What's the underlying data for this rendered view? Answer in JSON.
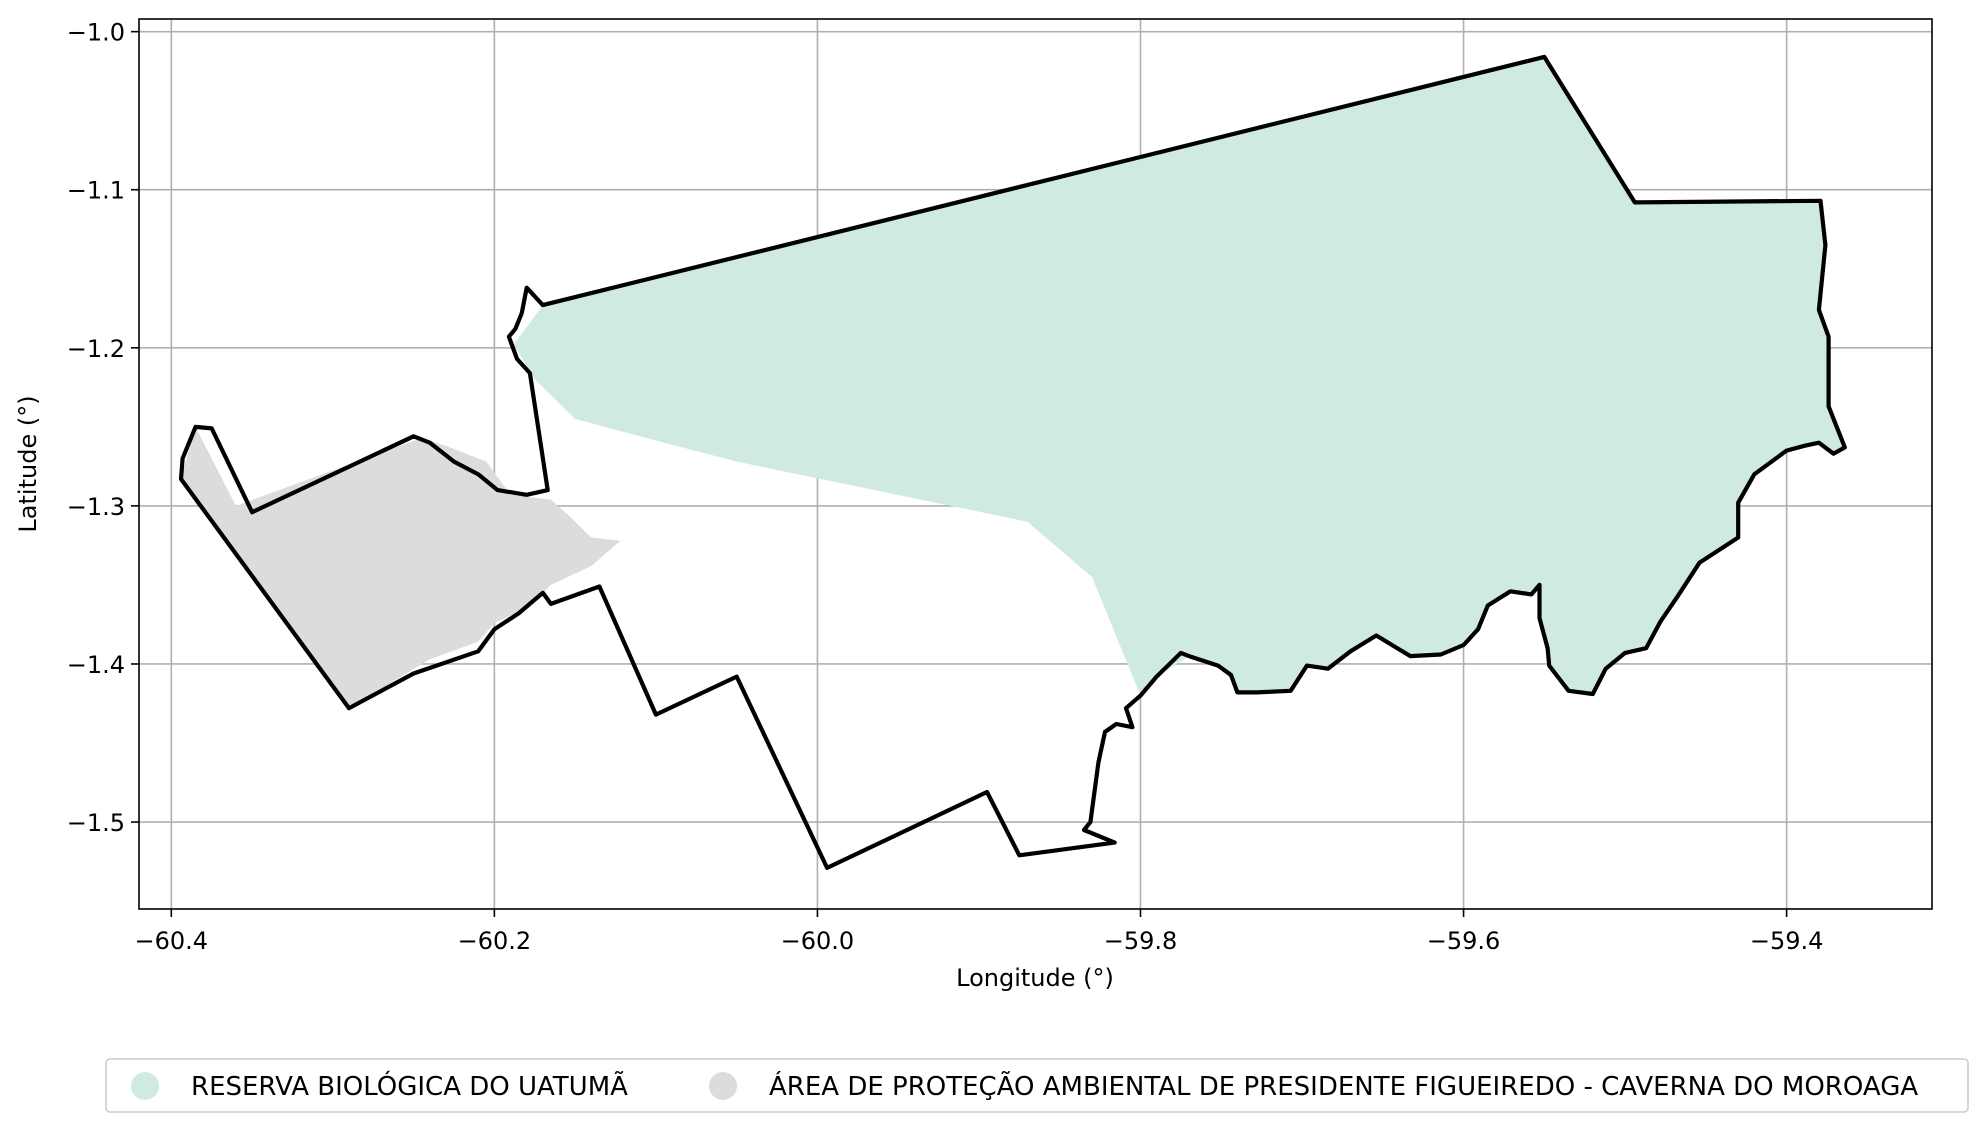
{
  "chart_data": {
    "type": "map",
    "xlabel": "Longitude (°)",
    "ylabel": "Latitude (°)",
    "xlim": [
      -60.42,
      -59.31
    ],
    "ylim": [
      -1.555,
      -0.992
    ],
    "xticks": [
      -60.4,
      -60.2,
      -60.0,
      -59.8,
      -59.6,
      -59.4
    ],
    "yticks": [
      -1.0,
      -1.1,
      -1.2,
      -1.3,
      -1.4,
      -1.5
    ],
    "xtick_labels": [
      "−60.4",
      "−60.2",
      "−60.0",
      "−59.8",
      "−59.6",
      "−59.4"
    ],
    "ytick_labels": [
      "−1.0",
      "−1.1",
      "−1.2",
      "−1.3",
      "−1.4",
      "−1.5"
    ],
    "grid": true,
    "legend_position": "bottom",
    "colors": {
      "reserve_fill": "#cfeade",
      "apa_fill": "#dcdcdc",
      "outline": "#000000",
      "grid": "#b0b0b0"
    },
    "areas": [
      {
        "name": "RESERVA BIOLÓGICA DO UATUMÃ",
        "color": "#cfeade",
        "polygon": [
          [
            -60.17,
            -1.173
          ],
          [
            -59.55,
            -1.016
          ],
          [
            -59.494,
            -1.108
          ],
          [
            -59.379,
            -1.107
          ],
          [
            -59.376,
            -1.135
          ],
          [
            -59.38,
            -1.176
          ],
          [
            -59.374,
            -1.193
          ],
          [
            -59.374,
            -1.237
          ],
          [
            -59.364,
            -1.263
          ],
          [
            -59.371,
            -1.267
          ],
          [
            -59.38,
            -1.26
          ],
          [
            -59.389,
            -1.262
          ],
          [
            -59.4,
            -1.265
          ],
          [
            -59.42,
            -1.28
          ],
          [
            -59.43,
            -1.298
          ],
          [
            -59.43,
            -1.32
          ],
          [
            -59.454,
            -1.336
          ],
          [
            -59.468,
            -1.358
          ],
          [
            -59.478,
            -1.373
          ],
          [
            -59.487,
            -1.39
          ],
          [
            -59.5,
            -1.393
          ],
          [
            -59.512,
            -1.403
          ],
          [
            -59.52,
            -1.419
          ],
          [
            -59.535,
            -1.417
          ],
          [
            -59.547,
            -1.401
          ],
          [
            -59.548,
            -1.39
          ],
          [
            -59.553,
            -1.371
          ],
          [
            -59.553,
            -1.35
          ],
          [
            -59.558,
            -1.356
          ],
          [
            -59.571,
            -1.354
          ],
          [
            -59.585,
            -1.363
          ],
          [
            -59.591,
            -1.378
          ],
          [
            -59.6,
            -1.388
          ],
          [
            -59.614,
            -1.394
          ],
          [
            -59.633,
            -1.395
          ],
          [
            -59.654,
            -1.382
          ],
          [
            -59.67,
            -1.392
          ],
          [
            -59.684,
            -1.403
          ],
          [
            -59.697,
            -1.401
          ],
          [
            -59.707,
            -1.417
          ],
          [
            -59.728,
            -1.418
          ],
          [
            -59.74,
            -1.418
          ],
          [
            -59.744,
            -1.407
          ],
          [
            -59.752,
            -1.401
          ],
          [
            -59.77,
            -1.395
          ],
          [
            -59.79,
            -1.408
          ],
          [
            -59.8,
            -1.42
          ],
          [
            -59.83,
            -1.345
          ],
          [
            -59.87,
            -1.31
          ],
          [
            -60.05,
            -1.272
          ],
          [
            -60.11,
            -1.256
          ],
          [
            -60.15,
            -1.245
          ],
          [
            -60.175,
            -1.22
          ],
          [
            -60.188,
            -1.198
          ]
        ]
      },
      {
        "name": "ÁREA DE PROTEÇÃO AMBIENTAL DE PRESIDENTE FIGUEIREDO - CAVERNA DO MOROAGA",
        "color": "#dcdcdc",
        "polygon": [
          [
            -60.385,
            -1.25
          ],
          [
            -60.36,
            -1.3
          ],
          [
            -60.245,
            -1.257
          ],
          [
            -60.23,
            -1.262
          ],
          [
            -60.205,
            -1.272
          ],
          [
            -60.19,
            -1.293
          ],
          [
            -60.165,
            -1.296
          ],
          [
            -60.153,
            -1.307
          ],
          [
            -60.14,
            -1.32
          ],
          [
            -60.122,
            -1.322
          ],
          [
            -60.14,
            -1.338
          ],
          [
            -60.165,
            -1.35
          ],
          [
            -60.18,
            -1.365
          ],
          [
            -60.2,
            -1.374
          ],
          [
            -60.21,
            -1.386
          ],
          [
            -60.24,
            -1.397
          ],
          [
            -60.29,
            -1.428
          ],
          [
            -60.394,
            -1.283
          ]
        ]
      }
    ],
    "boundary_outline": [
      [
        -60.17,
        -1.173
      ],
      [
        -59.55,
        -1.016
      ],
      [
        -59.494,
        -1.108
      ],
      [
        -59.379,
        -1.107
      ],
      [
        -59.376,
        -1.135
      ],
      [
        -59.38,
        -1.176
      ],
      [
        -59.374,
        -1.193
      ],
      [
        -59.374,
        -1.237
      ],
      [
        -59.364,
        -1.263
      ],
      [
        -59.371,
        -1.267
      ],
      [
        -59.38,
        -1.26
      ],
      [
        -59.389,
        -1.262
      ],
      [
        -59.4,
        -1.265
      ],
      [
        -59.42,
        -1.28
      ],
      [
        -59.43,
        -1.298
      ],
      [
        -59.43,
        -1.32
      ],
      [
        -59.454,
        -1.336
      ],
      [
        -59.468,
        -1.358
      ],
      [
        -59.478,
        -1.373
      ],
      [
        -59.487,
        -1.39
      ],
      [
        -59.5,
        -1.393
      ],
      [
        -59.512,
        -1.403
      ],
      [
        -59.52,
        -1.419
      ],
      [
        -59.535,
        -1.417
      ],
      [
        -59.547,
        -1.401
      ],
      [
        -59.548,
        -1.39
      ],
      [
        -59.553,
        -1.371
      ],
      [
        -59.553,
        -1.35
      ],
      [
        -59.558,
        -1.356
      ],
      [
        -59.571,
        -1.354
      ],
      [
        -59.585,
        -1.363
      ],
      [
        -59.591,
        -1.378
      ],
      [
        -59.6,
        -1.388
      ],
      [
        -59.614,
        -1.394
      ],
      [
        -59.633,
        -1.395
      ],
      [
        -59.654,
        -1.382
      ],
      [
        -59.67,
        -1.392
      ],
      [
        -59.684,
        -1.403
      ],
      [
        -59.697,
        -1.401
      ],
      [
        -59.707,
        -1.417
      ],
      [
        -59.728,
        -1.418
      ],
      [
        -59.74,
        -1.418
      ],
      [
        -59.744,
        -1.407
      ],
      [
        -59.752,
        -1.401
      ],
      [
        -59.77,
        -1.395
      ],
      [
        -59.775,
        -1.393
      ],
      [
        -59.79,
        -1.408
      ],
      [
        -59.8,
        -1.42
      ],
      [
        -59.809,
        -1.428
      ],
      [
        -59.805,
        -1.44
      ],
      [
        -59.815,
        -1.438
      ],
      [
        -59.822,
        -1.443
      ],
      [
        -59.826,
        -1.462
      ],
      [
        -59.828,
        -1.477
      ],
      [
        -59.831,
        -1.5
      ],
      [
        -59.835,
        -1.505
      ],
      [
        -59.816,
        -1.513
      ],
      [
        -59.875,
        -1.521
      ],
      [
        -59.895,
        -1.481
      ],
      [
        -59.994,
        -1.529
      ],
      [
        -60.05,
        -1.408
      ],
      [
        -60.1,
        -1.432
      ],
      [
        -60.135,
        -1.351
      ],
      [
        -60.165,
        -1.362
      ],
      [
        -60.17,
        -1.355
      ],
      [
        -60.185,
        -1.368
      ],
      [
        -60.2,
        -1.378
      ],
      [
        -60.21,
        -1.392
      ],
      [
        -60.25,
        -1.406
      ],
      [
        -60.29,
        -1.428
      ],
      [
        -60.394,
        -1.283
      ],
      [
        -60.393,
        -1.27
      ],
      [
        -60.385,
        -1.25
      ],
      [
        -60.375,
        -1.251
      ],
      [
        -60.35,
        -1.304
      ],
      [
        -60.25,
        -1.256
      ],
      [
        -60.24,
        -1.26
      ],
      [
        -60.225,
        -1.272
      ],
      [
        -60.21,
        -1.28
      ],
      [
        -60.198,
        -1.29
      ],
      [
        -60.18,
        -1.293
      ],
      [
        -60.167,
        -1.29
      ],
      [
        -60.178,
        -1.216
      ],
      [
        -60.186,
        -1.207
      ],
      [
        -60.191,
        -1.193
      ],
      [
        -60.187,
        -1.188
      ],
      [
        -60.183,
        -1.178
      ],
      [
        -60.18,
        -1.162
      ],
      [
        -60.17,
        -1.173
      ]
    ]
  }
}
